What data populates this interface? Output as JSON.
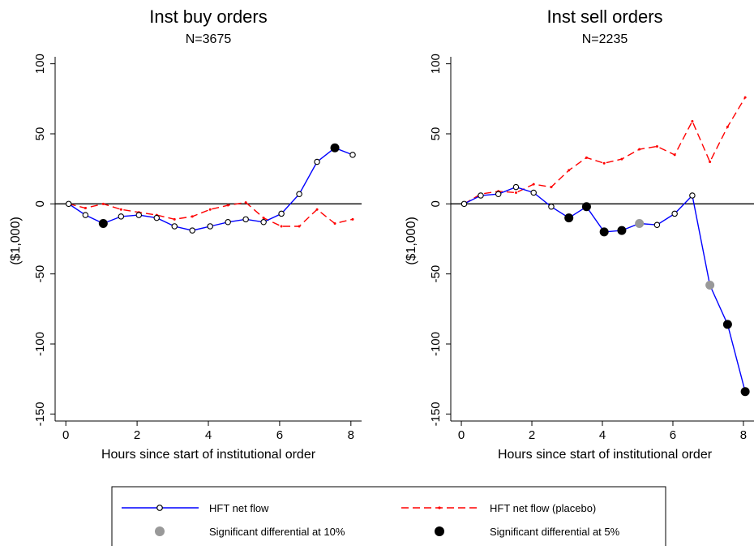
{
  "chart_data": [
    {
      "type": "line",
      "title": "Inst buy orders",
      "subtitle": "N=3675",
      "xlabel": "Hours since start of institutional order",
      "ylabel": "($1,000)",
      "xlim": [
        -0.3,
        8.3
      ],
      "ylim": [
        -155,
        105
      ],
      "xticks": [
        0,
        2,
        4,
        6,
        8
      ],
      "yticks": [
        -150,
        -100,
        -50,
        0,
        50,
        100
      ],
      "grid": false,
      "zero_line": true,
      "series": [
        {
          "name": "HFT net flow",
          "color": "#0000ff",
          "x": [
            0.08,
            0.55,
            1.05,
            1.55,
            2.05,
            2.55,
            3.05,
            3.55,
            4.05,
            4.55,
            5.05,
            5.55,
            6.05,
            6.55,
            7.05,
            7.55,
            8.05
          ],
          "y": [
            0,
            -8,
            -14,
            -9,
            -8,
            -10,
            -16,
            -19,
            -16,
            -13,
            -11,
            -13,
            -7,
            7,
            30,
            40,
            35
          ]
        },
        {
          "name": "HFT net flow (placebo)",
          "color": "#ff0000",
          "x": [
            0.08,
            0.55,
            1.05,
            1.55,
            2.05,
            2.55,
            3.05,
            3.55,
            4.05,
            4.55,
            5.05,
            5.55,
            6.05,
            6.55,
            7.05,
            7.55,
            8.05
          ],
          "y": [
            0,
            -3,
            0,
            -4,
            -6,
            -8,
            -11,
            -9,
            -4,
            -1,
            1,
            -10,
            -16,
            -16,
            -4,
            -14,
            -11
          ]
        }
      ],
      "significant_10pct": [],
      "significant_5pct": [
        {
          "x": 1.05,
          "y": -14
        },
        {
          "x": 7.55,
          "y": 40
        }
      ]
    },
    {
      "type": "line",
      "title": "Inst sell orders",
      "subtitle": "N=2235",
      "xlabel": "Hours since start of institutional order",
      "ylabel": "($1,000)",
      "xlim": [
        -0.3,
        8.3
      ],
      "ylim": [
        -155,
        105
      ],
      "xticks": [
        0,
        2,
        4,
        6,
        8
      ],
      "yticks": [
        -150,
        -100,
        -50,
        0,
        50,
        100
      ],
      "grid": false,
      "zero_line": true,
      "series": [
        {
          "name": "HFT net flow",
          "color": "#0000ff",
          "x": [
            0.08,
            0.55,
            1.05,
            1.55,
            2.05,
            2.55,
            3.05,
            3.55,
            4.05,
            4.55,
            5.05,
            5.55,
            6.05,
            6.55,
            7.05,
            7.55,
            8.05
          ],
          "y": [
            0,
            6,
            7,
            12,
            8,
            -2,
            -10,
            -2,
            -20,
            -19,
            -14,
            -15,
            -7,
            6,
            -58,
            -86,
            -134
          ]
        },
        {
          "name": "HFT net flow (placebo)",
          "color": "#ff0000",
          "x": [
            0.08,
            0.55,
            1.05,
            1.55,
            2.05,
            2.55,
            3.05,
            3.55,
            4.05,
            4.55,
            5.05,
            5.55,
            6.05,
            6.55,
            7.05,
            7.55,
            8.05
          ],
          "y": [
            0,
            7,
            9,
            8,
            14,
            12,
            24,
            33,
            29,
            32,
            39,
            41,
            35,
            59,
            30,
            55,
            76
          ]
        }
      ],
      "significant_10pct": [
        {
          "x": 5.05,
          "y": -14
        },
        {
          "x": 7.05,
          "y": -58
        }
      ],
      "significant_5pct": [
        {
          "x": 3.05,
          "y": -10
        },
        {
          "x": 3.55,
          "y": -2
        },
        {
          "x": 4.05,
          "y": -20
        },
        {
          "x": 4.55,
          "y": -19
        },
        {
          "x": 7.55,
          "y": -86
        },
        {
          "x": 8.05,
          "y": -134
        }
      ]
    }
  ],
  "legend": {
    "placement": "bottom",
    "items": [
      {
        "label": "HFT net flow",
        "kind": "line-hollow"
      },
      {
        "label": "HFT net flow (placebo)",
        "kind": "line-dashed"
      },
      {
        "label": "Significant differential at 10%",
        "kind": "dot-gray"
      },
      {
        "label": "Significant differential at 5%",
        "kind": "dot-black"
      }
    ]
  },
  "colors": {
    "hft": "#0000ff",
    "placebo": "#ff0000",
    "sig10": "#999999",
    "sig5": "#000000"
  }
}
